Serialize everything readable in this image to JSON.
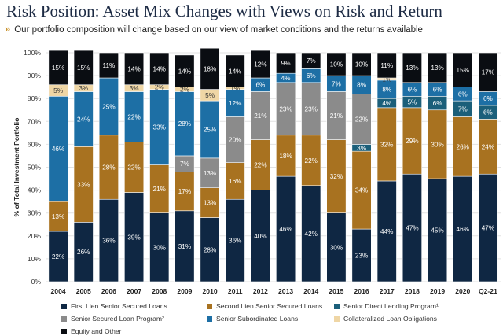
{
  "header": {
    "title": "Risk Position: Asset Mix Changes with Views on Risk and Return",
    "subtitle": "Our portfolio composition will change based on our view of market conditions and the returns available",
    "chevron": "»"
  },
  "chart_data": {
    "type": "bar",
    "stacked": true,
    "ylabel": "% of Total Investment Portfolio",
    "ylim": [
      0,
      100
    ],
    "yticks": [
      "0%",
      "10%",
      "20%",
      "30%",
      "40%",
      "50%",
      "60%",
      "70%",
      "80%",
      "90%",
      "100%"
    ],
    "categories": [
      "2004",
      "2005",
      "2006",
      "2007",
      "2008",
      "2009",
      "2010",
      "2011",
      "2012",
      "2013",
      "2014",
      "2015",
      "2016",
      "2017",
      "2018",
      "2019",
      "2020",
      "Q2-21"
    ],
    "series": [
      {
        "name": "First Lien Senior Secured Loans",
        "color": "#0f2743",
        "label_color": "#ffffff",
        "values": [
          22,
          26,
          36,
          39,
          30,
          31,
          28,
          36,
          40,
          46,
          42,
          30,
          23,
          44,
          47,
          45,
          46,
          47
        ],
        "labels": [
          "22%",
          "26%",
          "36%",
          "39%",
          "30%",
          "31%",
          "28%",
          "36%",
          "40%",
          "46%",
          "42%",
          "30%",
          "23%",
          "44%",
          "47%",
          "45%",
          "46%",
          "47%"
        ]
      },
      {
        "name": "Second Lien Senior Secured Loans",
        "color": "#a87220",
        "label_color": "#ffffff",
        "values": [
          13,
          33,
          28,
          22,
          21,
          17,
          13,
          16,
          22,
          18,
          22,
          32,
          34,
          32,
          29,
          30,
          26,
          24
        ],
        "labels": [
          "13%",
          "33%",
          "28%",
          "22%",
          "21%",
          "17%",
          "13%",
          "16%",
          "22%",
          "18%",
          "22%",
          "32%",
          "34%",
          "32%",
          "29%",
          "30%",
          "26%",
          "24%"
        ]
      },
      {
        "name": "Senior Direct Lending Program¹",
        "color": "#1b5f7a",
        "label_color": "#ffffff",
        "values": [
          0,
          0,
          0,
          0,
          0,
          0,
          0,
          0,
          0,
          0,
          0,
          0,
          3,
          4,
          5,
          6,
          7,
          6
        ],
        "labels": [
          "",
          "",
          "",
          "",
          "",
          "",
          "",
          "",
          "",
          "",
          "",
          "",
          "3%",
          "4%",
          "5%",
          "6%",
          "7%",
          "6%"
        ]
      },
      {
        "name": "Senior Secured Loan Program²",
        "color": "#8b8b8b",
        "label_color": "#ffffff",
        "values": [
          0,
          0,
          0,
          0,
          0,
          7,
          13,
          20,
          21,
          23,
          23,
          21,
          22,
          0,
          0,
          0,
          0,
          0
        ],
        "labels": [
          "",
          "",
          "",
          "",
          "",
          "7%",
          "13%",
          "20%",
          "21%",
          "23%",
          "23%",
          "21%",
          "22%",
          "",
          "",
          "",
          "",
          ""
        ]
      },
      {
        "name": "Senior Subordinated Loans",
        "color": "#1d6fa5",
        "label_color": "#ffffff",
        "values": [
          46,
          24,
          25,
          22,
          33,
          28,
          25,
          12,
          6,
          4,
          6,
          7,
          8,
          8,
          6,
          6,
          6,
          6
        ],
        "labels": [
          "46%",
          "24%",
          "25%",
          "22%",
          "33%",
          "28%",
          "25%",
          "12%",
          "6%",
          "4%",
          "6%",
          "7%",
          "8%",
          "8%",
          "6%",
          "6%",
          "6%",
          "6%"
        ]
      },
      {
        "name": "Collateralized Loan Obligations",
        "color": "#efd6a5",
        "label_color": "#333333",
        "values": [
          5,
          3,
          0,
          3,
          2,
          2,
          5,
          1,
          0,
          0,
          0,
          0,
          0,
          1,
          0,
          0,
          0,
          0
        ],
        "labels": [
          "5%",
          "3%",
          "",
          "3%",
          "2%",
          "2%",
          "5%",
          "1%",
          "",
          "",
          "",
          "",
          "",
          "1%",
          "",
          "",
          "",
          ""
        ]
      },
      {
        "name": "Equity and Other",
        "color": "#0a0d12",
        "label_color": "#ffffff",
        "values": [
          15,
          15,
          11,
          14,
          14,
          14,
          18,
          14,
          12,
          9,
          7,
          10,
          10,
          11,
          13,
          13,
          15,
          17
        ],
        "labels": [
          "15%",
          "15%",
          "11%",
          "14%",
          "14%",
          "14%",
          "18%",
          "14%",
          "12%",
          "9%",
          "7%",
          "10%",
          "10%",
          "11%",
          "13%",
          "13%",
          "15%",
          "17%"
        ]
      }
    ]
  }
}
